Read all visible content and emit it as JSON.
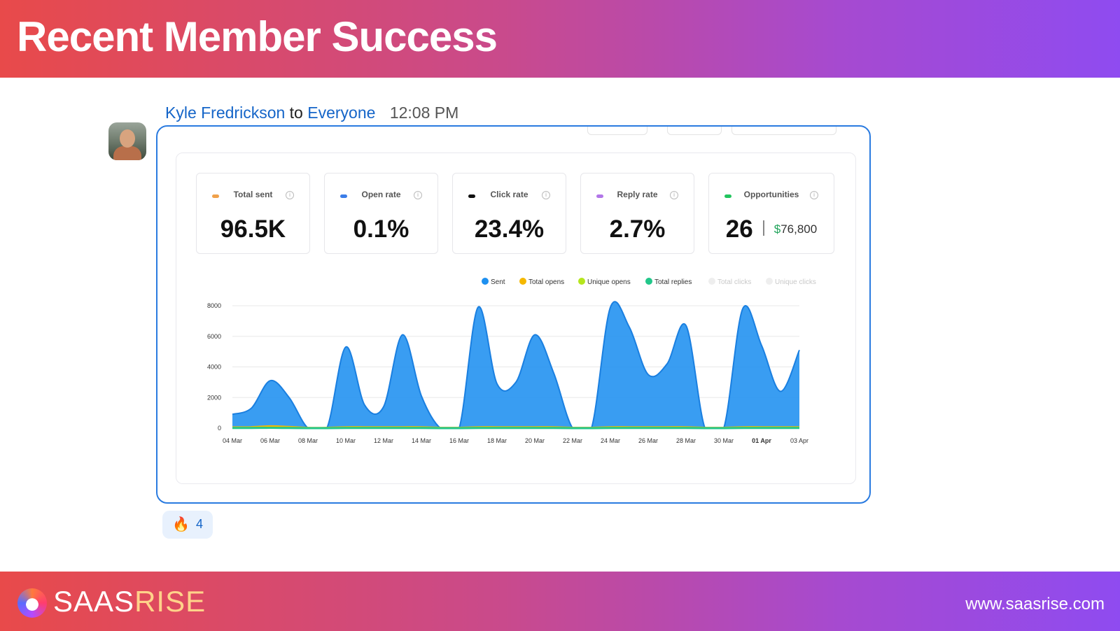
{
  "banner": {
    "title": "Recent Member Success"
  },
  "message": {
    "sender": "Kyle Fredrickson",
    "connector": "to",
    "recipient": "Everyone",
    "time": "12:08 PM"
  },
  "stats": [
    {
      "label": "Total sent",
      "value": "96.5K",
      "color": "#f0a14a"
    },
    {
      "label": "Open rate",
      "value": "0.1%",
      "color": "#3b7de8"
    },
    {
      "label": "Click rate",
      "value": "23.4%",
      "color": "#111111"
    },
    {
      "label": "Reply rate",
      "value": "2.7%",
      "color": "#b276e8"
    },
    {
      "label": "Opportunities",
      "value": "26",
      "money": "$76,800",
      "color": "#22c55e"
    }
  ],
  "legend": [
    {
      "label": "Sent",
      "color": "#1e90f0",
      "faded": false
    },
    {
      "label": "Total opens",
      "color": "#f5b800",
      "faded": false
    },
    {
      "label": "Unique opens",
      "color": "#b5e61d",
      "faded": false
    },
    {
      "label": "Total replies",
      "color": "#22c78a",
      "faded": false
    },
    {
      "label": "Total clicks",
      "color": "#eeeeee",
      "faded": true
    },
    {
      "label": "Unique clicks",
      "color": "#eeeeee",
      "faded": true
    }
  ],
  "chart_data": {
    "type": "area",
    "x": [
      "04 Mar",
      "05 Mar",
      "06 Mar",
      "07 Mar",
      "08 Mar",
      "09 Mar",
      "10 Mar",
      "11 Mar",
      "12 Mar",
      "13 Mar",
      "14 Mar",
      "15 Mar",
      "16 Mar",
      "17 Mar",
      "18 Mar",
      "19 Mar",
      "20 Mar",
      "21 Mar",
      "22 Mar",
      "23 Mar",
      "24 Mar",
      "25 Mar",
      "26 Mar",
      "27 Mar",
      "28 Mar",
      "29 Mar",
      "30 Mar",
      "31 Mar",
      "01 Apr",
      "02 Apr",
      "03 Apr"
    ],
    "tick_labels": [
      "04 Mar",
      "06 Mar",
      "08 Mar",
      "10 Mar",
      "12 Mar",
      "14 Mar",
      "16 Mar",
      "18 Mar",
      "20 Mar",
      "22 Mar",
      "24 Mar",
      "26 Mar",
      "28 Mar",
      "30 Mar",
      "01 Apr",
      "03 Apr"
    ],
    "bold_tick": "01 Apr",
    "y_ticks": [
      0,
      2000,
      4000,
      6000,
      8000
    ],
    "ylim": [
      0,
      8000
    ],
    "series": [
      {
        "name": "Sent",
        "color": "#1e90f0",
        "values": [
          900,
          1300,
          3100,
          2000,
          0,
          0,
          5300,
          1500,
          1400,
          6100,
          2100,
          0,
          0,
          7900,
          2900,
          3000,
          6100,
          3600,
          0,
          0,
          7900,
          6600,
          3500,
          4200,
          6700,
          0,
          0,
          7800,
          5400,
          2400,
          5100
        ]
      },
      {
        "name": "Total opens",
        "color": "#f5b800",
        "values": [
          50,
          60,
          120,
          80,
          20,
          20,
          60,
          60,
          60,
          60,
          60,
          20,
          20,
          60,
          60,
          60,
          60,
          60,
          20,
          20,
          60,
          60,
          60,
          60,
          60,
          20,
          20,
          60,
          60,
          60,
          60
        ]
      },
      {
        "name": "Total replies",
        "color": "#22c78a",
        "values": [
          10,
          10,
          20,
          10,
          0,
          0,
          10,
          10,
          10,
          10,
          10,
          0,
          0,
          10,
          10,
          10,
          10,
          10,
          0,
          0,
          10,
          10,
          10,
          10,
          10,
          0,
          0,
          10,
          10,
          10,
          10
        ]
      }
    ]
  },
  "reaction": {
    "emoji": "🔥",
    "count": "4"
  },
  "footer": {
    "logo_a": "SAAS",
    "logo_b": "RISE",
    "url": "www.saasrise.com"
  }
}
